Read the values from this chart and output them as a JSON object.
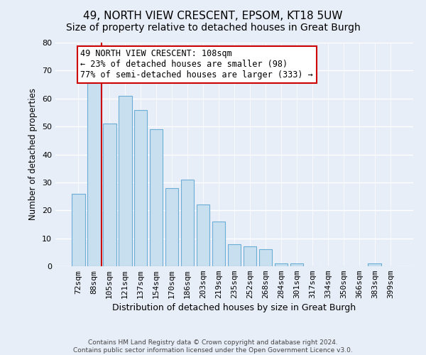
{
  "title": "49, NORTH VIEW CRESCENT, EPSOM, KT18 5UW",
  "subtitle": "Size of property relative to detached houses in Great Burgh",
  "xlabel": "Distribution of detached houses by size in Great Burgh",
  "ylabel": "Number of detached properties",
  "bar_labels": [
    "72sqm",
    "88sqm",
    "105sqm",
    "121sqm",
    "137sqm",
    "154sqm",
    "170sqm",
    "186sqm",
    "203sqm",
    "219sqm",
    "235sqm",
    "252sqm",
    "268sqm",
    "284sqm",
    "301sqm",
    "317sqm",
    "334sqm",
    "350sqm",
    "366sqm",
    "383sqm",
    "399sqm"
  ],
  "bar_values": [
    26,
    66,
    51,
    61,
    56,
    49,
    28,
    31,
    22,
    16,
    8,
    7,
    6,
    1,
    1,
    0,
    0,
    0,
    0,
    1,
    0
  ],
  "bar_color": "#c8dff0",
  "bar_edge_color": "#6aaed6",
  "ylim": [
    0,
    80
  ],
  "yticks": [
    0,
    10,
    20,
    30,
    40,
    50,
    60,
    70,
    80
  ],
  "property_line_x": 1.5,
  "property_line_color": "#cc0000",
  "annotation_title": "49 NORTH VIEW CRESCENT: 108sqm",
  "annotation_line1": "← 23% of detached houses are smaller (98)",
  "annotation_line2": "77% of semi-detached houses are larger (333) →",
  "annotation_box_color": "#ffffff",
  "annotation_box_edge": "#cc0000",
  "footer1": "Contains HM Land Registry data © Crown copyright and database right 2024.",
  "footer2": "Contains public sector information licensed under the Open Government Licence v3.0.",
  "bg_color": "#e8eef8",
  "plot_bg_color": "#e8eef8",
  "grid_color": "#ffffff",
  "title_fontsize": 11,
  "subtitle_fontsize": 10,
  "ylabel_fontsize": 8.5,
  "xlabel_fontsize": 9,
  "tick_fontsize": 8,
  "annotation_fontsize": 8.5,
  "footer_fontsize": 6.5
}
